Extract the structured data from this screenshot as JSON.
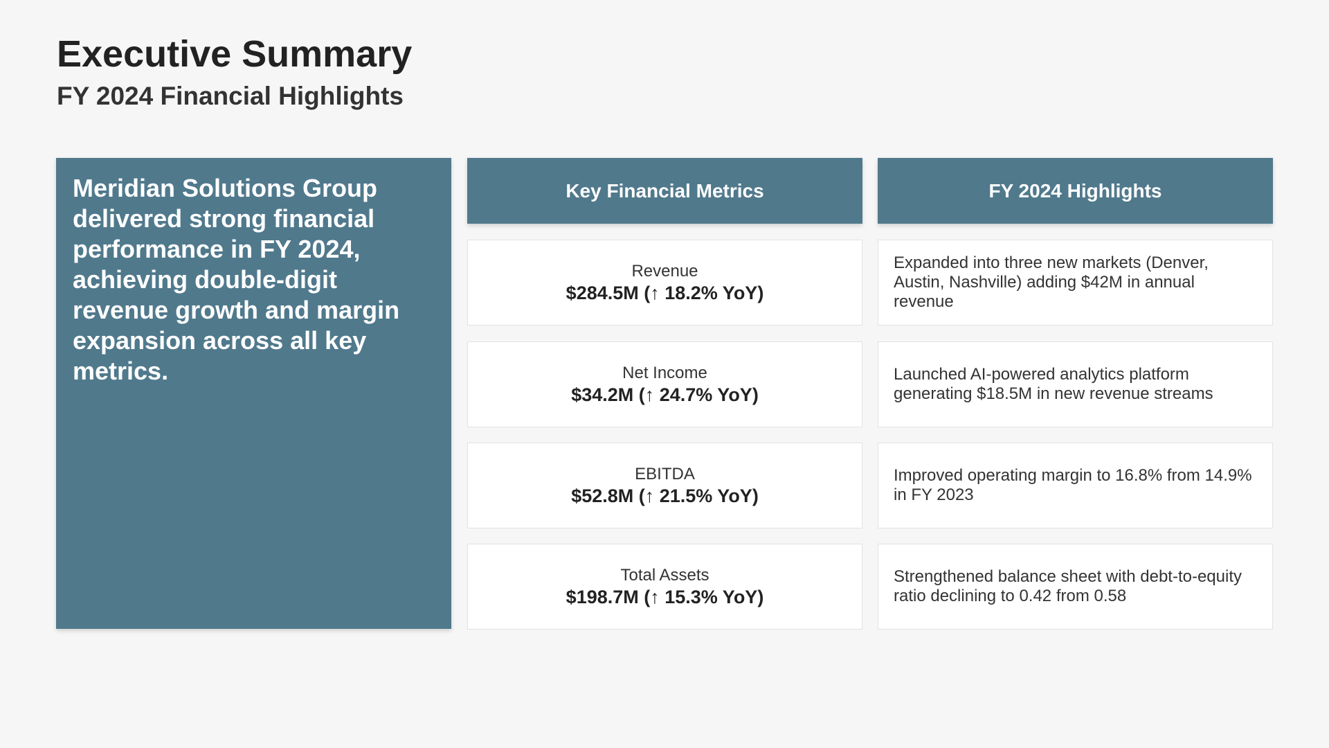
{
  "header": {
    "title": "Executive Summary",
    "subtitle": "FY 2024 Financial Highlights"
  },
  "summary": {
    "text": "Meridian Solutions Group delivered strong financial performance in FY 2024, achieving double-digit revenue growth and margin expansion across all key metrics."
  },
  "metrics": {
    "heading": "Key Financial Metrics",
    "items": [
      {
        "label": "Revenue",
        "value": "$284.5M (↑ 18.2% YoY)"
      },
      {
        "label": "Net Income",
        "value": "$34.2M (↑ 24.7% YoY)"
      },
      {
        "label": "EBITDA",
        "value": "$52.8M (↑ 21.5% YoY)"
      },
      {
        "label": "Total Assets",
        "value": "$198.7M (↑ 15.3% YoY)"
      }
    ]
  },
  "highlights": {
    "heading": "FY 2024 Highlights",
    "items": [
      "Expanded into three new markets (Denver, Austin, Nashville) adding $42M in annual revenue",
      "Launched AI-powered analytics platform generating $18.5M in new revenue streams",
      "Improved operating margin to 16.8% from 14.9% in FY 2023",
      "Strengthened balance sheet with debt-to-equity ratio declining to 0.42 from 0.58"
    ]
  },
  "colors": {
    "accent": "#50798c",
    "background": "#f6f6f6",
    "card": "#ffffff"
  }
}
